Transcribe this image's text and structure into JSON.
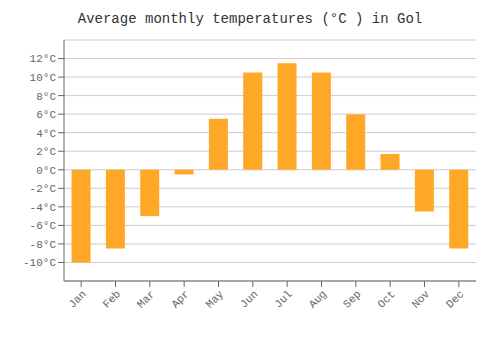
{
  "chart_data": {
    "type": "bar",
    "title": "Average monthly temperatures (°C ) in Gol",
    "categories": [
      "Jan",
      "Feb",
      "Mar",
      "Apr",
      "May",
      "Jun",
      "Jul",
      "Aug",
      "Sep",
      "Oct",
      "Nov",
      "Dec"
    ],
    "values": [
      -10.0,
      -8.5,
      -5.0,
      -0.5,
      5.5,
      10.5,
      11.5,
      10.5,
      6.0,
      1.7,
      -4.5,
      -8.5
    ],
    "color": "#FFA726",
    "ylim": [
      -12,
      14
    ],
    "yticks": [
      {
        "value": -10,
        "label": "-10°C"
      },
      {
        "value": -8,
        "label": "-8°C"
      },
      {
        "value": -6,
        "label": "-6°C"
      },
      {
        "value": -4,
        "label": "-4°C"
      },
      {
        "value": -2,
        "label": "-2°C"
      },
      {
        "value": 0,
        "label": "0°C"
      },
      {
        "value": 2,
        "label": "2°C"
      },
      {
        "value": 4,
        "label": "4°C"
      },
      {
        "value": 6,
        "label": "6°C"
      },
      {
        "value": 8,
        "label": "8°C"
      },
      {
        "value": 10,
        "label": "10°C"
      },
      {
        "value": 12,
        "label": "12°C"
      }
    ],
    "grid": true
  }
}
